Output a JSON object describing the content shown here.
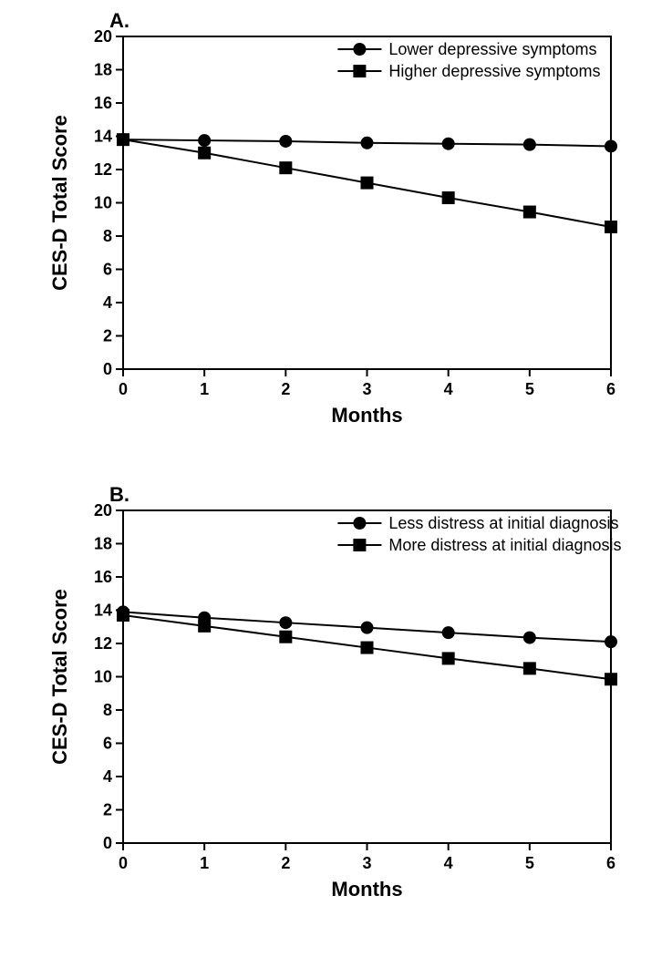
{
  "panelA": {
    "label": "A.",
    "type": "line",
    "xlabel": "Months",
    "ylabel": "CES-D Total Score",
    "xlim": [
      0,
      6
    ],
    "ylim": [
      0,
      20
    ],
    "xticks": [
      0,
      1,
      2,
      3,
      4,
      5,
      6
    ],
    "yticks": [
      0,
      2,
      4,
      6,
      8,
      10,
      12,
      14,
      16,
      18,
      20
    ],
    "label_fontsize": 22,
    "tick_fontsize": 18,
    "legend_fontsize": 18,
    "line_width": 2,
    "marker_size": 7,
    "background_color": "#ffffff",
    "axis_color": "#000000",
    "series": [
      {
        "name": "Lower depressive symptoms",
        "marker": "circle",
        "color": "#000000",
        "x": [
          0,
          1,
          2,
          3,
          4,
          5,
          6
        ],
        "y": [
          13.8,
          13.75,
          13.7,
          13.6,
          13.55,
          13.5,
          13.4
        ]
      },
      {
        "name": "Higher depressive symptoms",
        "marker": "square",
        "color": "#000000",
        "x": [
          0,
          1,
          2,
          3,
          4,
          5,
          6
        ],
        "y": [
          13.8,
          13.0,
          12.1,
          11.2,
          10.3,
          9.45,
          8.55
        ]
      }
    ],
    "legend_position": "top-right"
  },
  "panelB": {
    "label": "B.",
    "type": "line",
    "xlabel": "Months",
    "ylabel": "CES-D Total Score",
    "xlim": [
      0,
      6
    ],
    "ylim": [
      0,
      20
    ],
    "xticks": [
      0,
      1,
      2,
      3,
      4,
      5,
      6
    ],
    "yticks": [
      0,
      2,
      4,
      6,
      8,
      10,
      12,
      14,
      16,
      18,
      20
    ],
    "label_fontsize": 22,
    "tick_fontsize": 18,
    "legend_fontsize": 18,
    "line_width": 2,
    "marker_size": 7,
    "background_color": "#ffffff",
    "axis_color": "#000000",
    "series": [
      {
        "name": "Less distress at initial diagnosis",
        "marker": "circle",
        "color": "#000000",
        "x": [
          0,
          1,
          2,
          3,
          4,
          5,
          6
        ],
        "y": [
          13.9,
          13.55,
          13.25,
          12.95,
          12.65,
          12.35,
          12.1
        ]
      },
      {
        "name": "More distress at initial diagnosis",
        "marker": "square",
        "color": "#000000",
        "x": [
          0,
          1,
          2,
          3,
          4,
          5,
          6
        ],
        "y": [
          13.7,
          13.05,
          12.4,
          11.75,
          11.1,
          10.5,
          9.85
        ]
      }
    ],
    "legend_position": "top-right"
  }
}
